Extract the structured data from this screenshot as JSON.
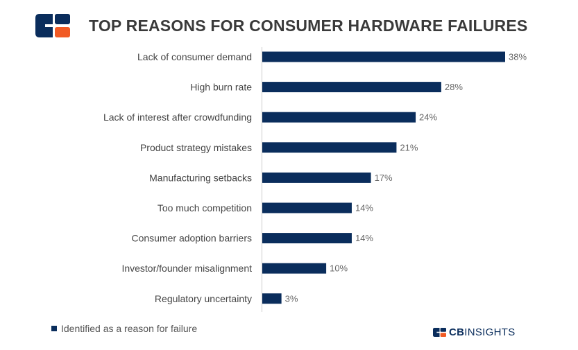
{
  "header": {
    "title": "TOP REASONS FOR CONSUMER HARDWARE FAILURES",
    "logo_icon": "cb-insights-logo-icon"
  },
  "colors": {
    "bar": "#0a2d5c",
    "logo_navy": "#0a2d5c",
    "logo_orange": "#f15a24",
    "axis": "#cccccc",
    "label_text": "#444444",
    "value_text": "#666666"
  },
  "chart_data": {
    "type": "bar",
    "orientation": "horizontal",
    "categories": [
      "Lack of consumer demand",
      "High burn rate",
      "Lack of interest after crowdfunding",
      "Product strategy mistakes",
      "Manufacturing setbacks",
      "Too much competition",
      "Consumer adoption barriers",
      "Investor/founder misalignment",
      "Regulatory uncertainty"
    ],
    "values": [
      38,
      28,
      24,
      21,
      17,
      14,
      14,
      10,
      3
    ],
    "value_labels": [
      "38%",
      "28%",
      "24%",
      "21%",
      "17%",
      "14%",
      "14%",
      "10%",
      "3%"
    ],
    "series": [
      {
        "name": "Identified as a reason for failure",
        "values": [
          38,
          28,
          24,
          21,
          17,
          14,
          14,
          10,
          3
        ]
      }
    ],
    "xlim": [
      0,
      38
    ],
    "unit": "%",
    "grid": false,
    "legend_position": "bottom-left"
  },
  "legend": {
    "label": "Identified as a reason for failure"
  },
  "footer": {
    "brand_bold": "CB",
    "brand_rest": "INSIGHTS"
  }
}
